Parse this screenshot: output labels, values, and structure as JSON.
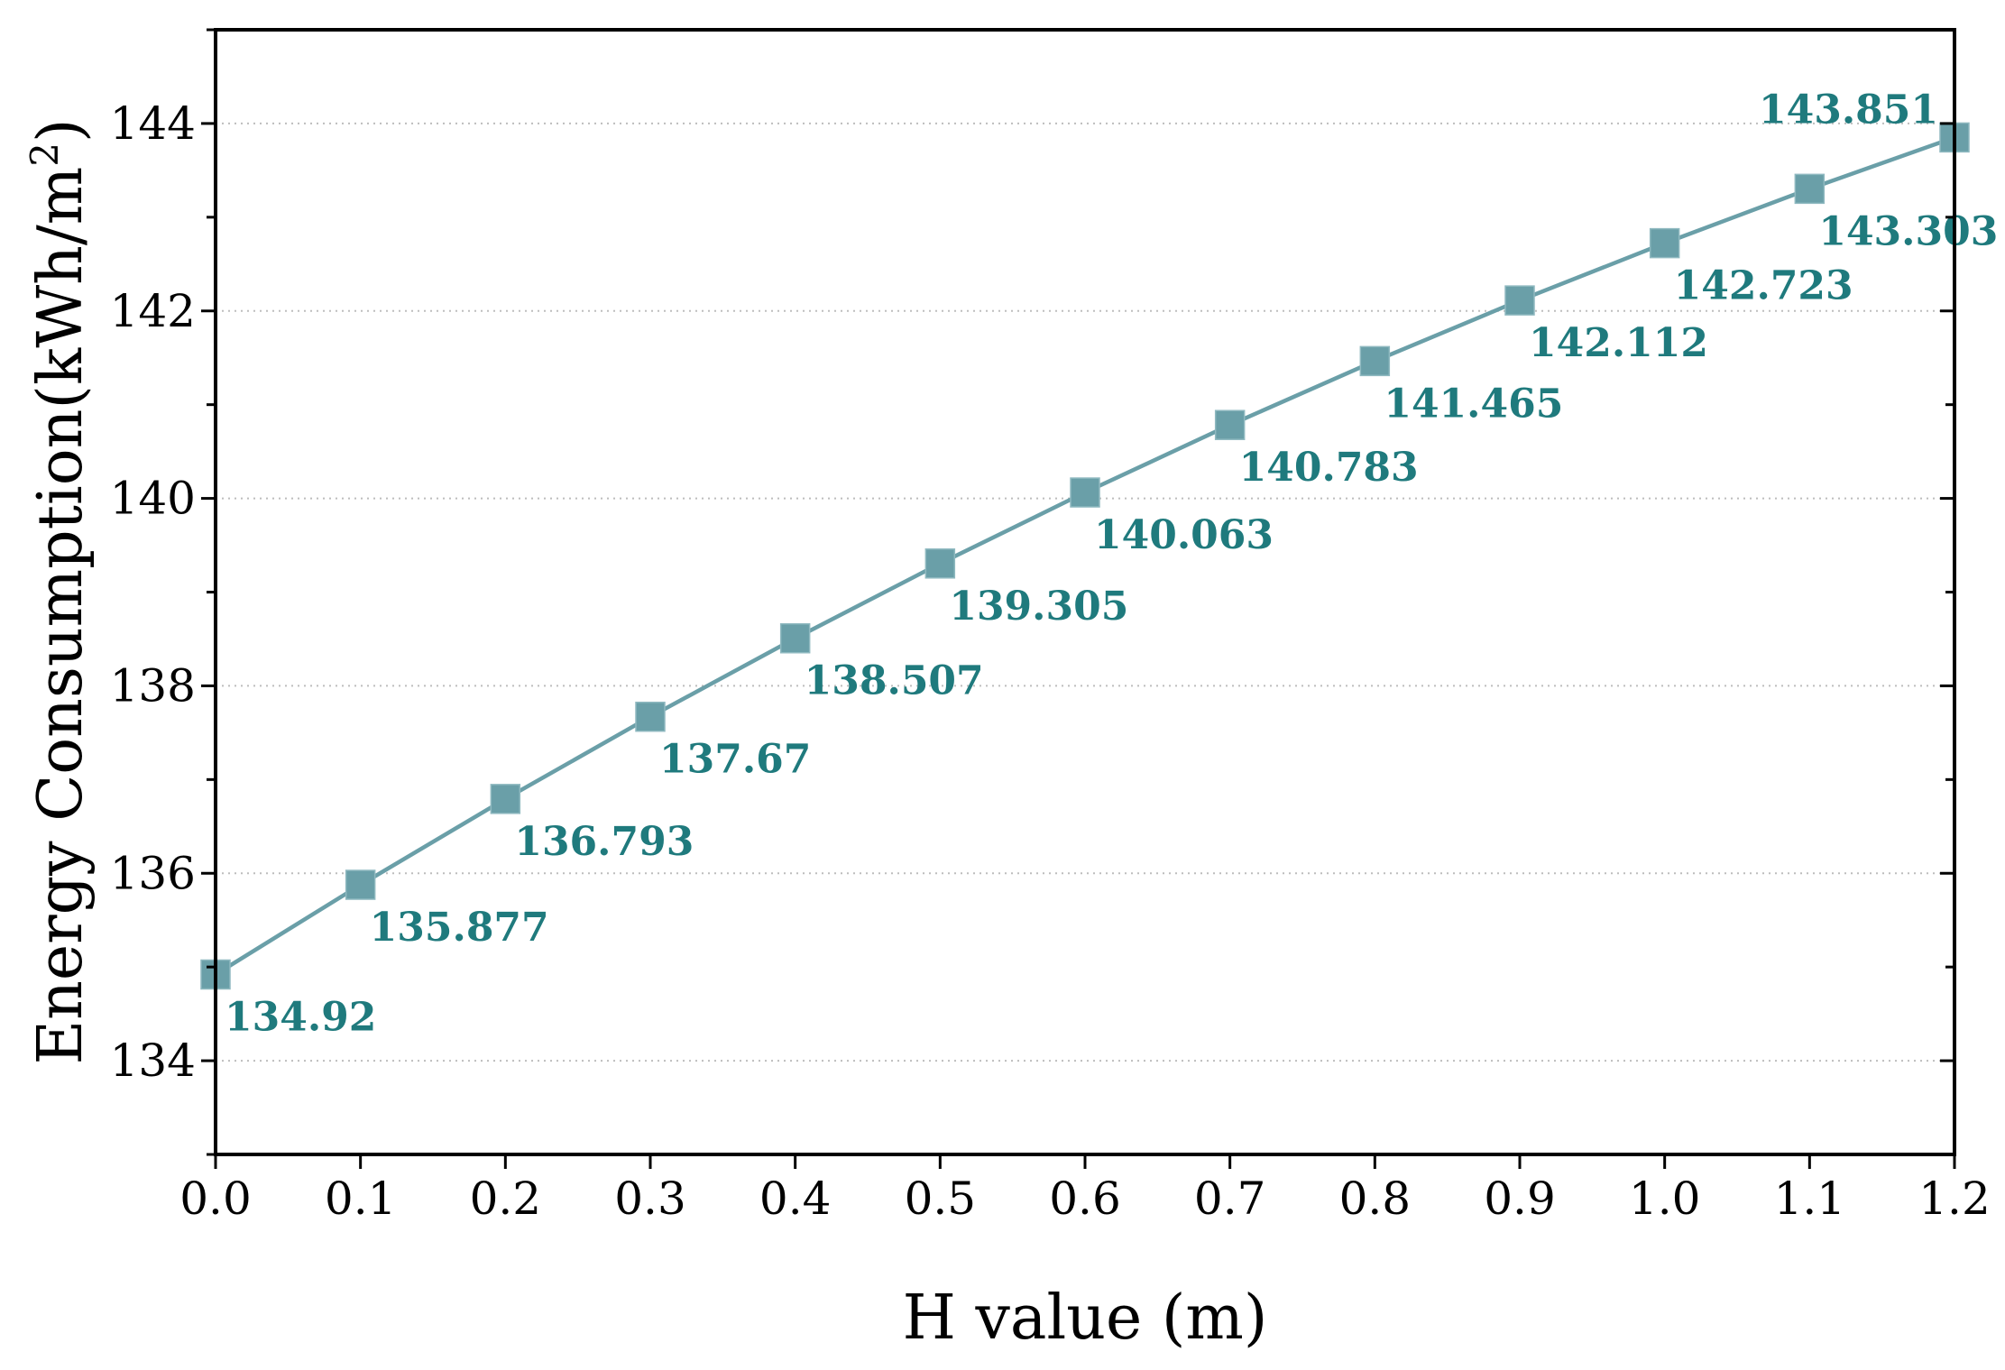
{
  "chart_data": {
    "type": "line",
    "title": "",
    "xlabel": "H value (m)",
    "ylabel_main": "Energy Consumption(kWh/m",
    "ylabel_sup": "2",
    "ylabel_close": ")",
    "xlim": [
      0.0,
      1.2
    ],
    "ylim": [
      133,
      145
    ],
    "xticks": [
      0.0,
      0.1,
      0.2,
      0.3,
      0.4,
      0.5,
      0.6,
      0.7,
      0.8,
      0.9,
      1.0,
      1.1,
      1.2
    ],
    "xtick_labels": [
      "0.0",
      "0.1",
      "0.2",
      "0.3",
      "0.4",
      "0.5",
      "0.6",
      "0.7",
      "0.8",
      "0.9",
      "1.0",
      "1.1",
      "1.2"
    ],
    "yticks": [
      134,
      136,
      138,
      140,
      142,
      144
    ],
    "ytick_labels": [
      "134",
      "136",
      "138",
      "140",
      "142",
      "144"
    ],
    "grid": true,
    "series": [
      {
        "name": "Energy Consumption",
        "color": "#6a9fa8",
        "label_color": "#1f7a7d",
        "marker": "square",
        "x": [
          0.0,
          0.1,
          0.2,
          0.3,
          0.4,
          0.5,
          0.6,
          0.7,
          0.8,
          0.9,
          1.0,
          1.1,
          1.2
        ],
        "values": [
          134.92,
          135.877,
          136.793,
          137.67,
          138.507,
          139.305,
          140.063,
          140.783,
          141.465,
          142.112,
          142.723,
          143.303,
          143.851
        ],
        "labels": [
          "134.92",
          "135.877",
          "136.793",
          "137.67",
          "138.507",
          "139.305",
          "140.063",
          "140.783",
          "141.465",
          "142.112",
          "142.723",
          "143.303",
          "143.851"
        ]
      }
    ]
  }
}
